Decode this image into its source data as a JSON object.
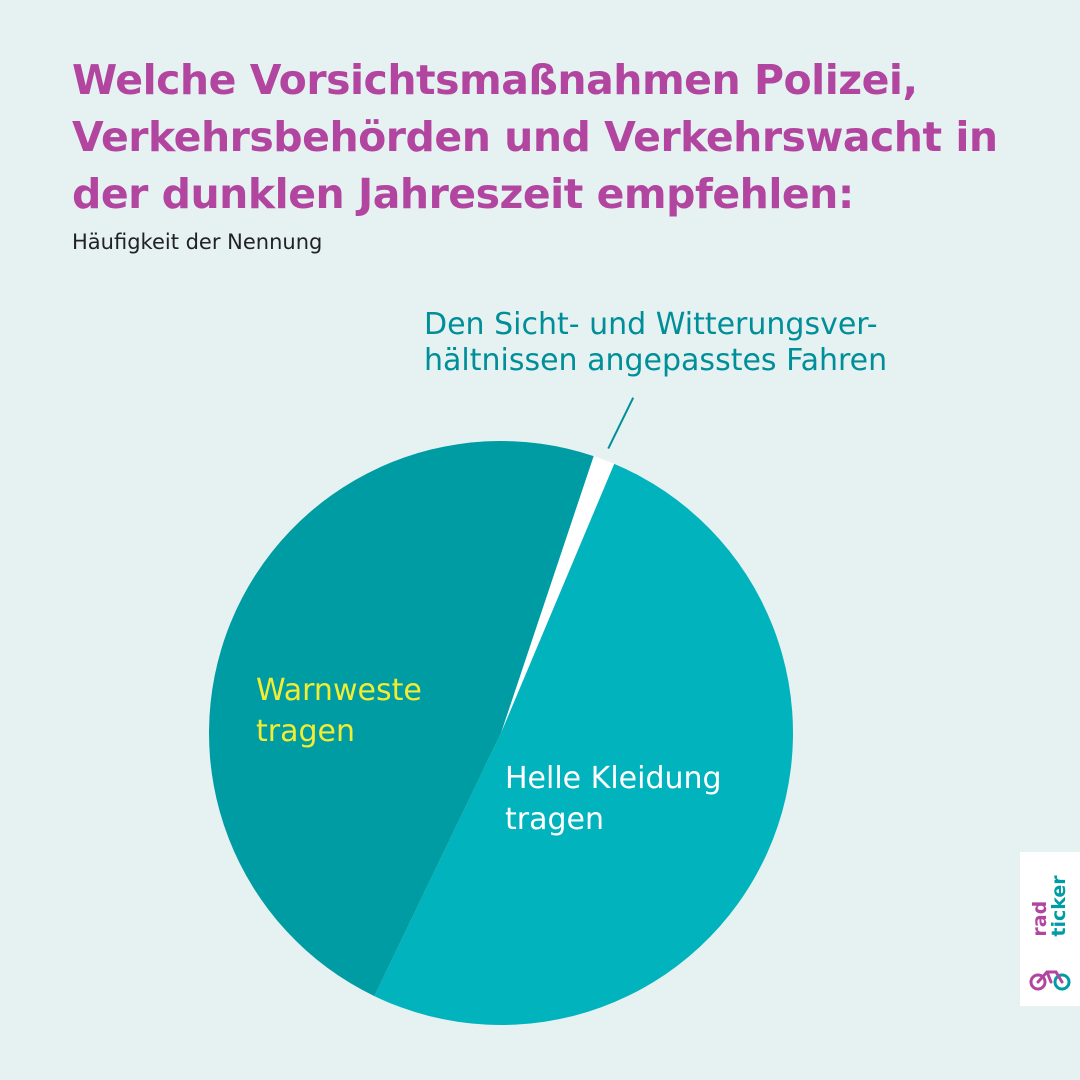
{
  "title": "Welche Vorsichtsmaßnahmen Polizei, Verkehrsbehörden und Verkehrswacht in der dunklen Jahreszeit empfehlen:",
  "subtitle": "Häufigkeit der Nennung",
  "colors": {
    "background": "#e6f1f2",
    "title": "#b2459f",
    "warnweste": "#009ca3",
    "helle_kleidung": "#00b3bd",
    "sicht": "#ffffff",
    "label_warnweste": "#f2ec32",
    "label_helle": "#ffffff",
    "label_sicht": "#008f98"
  },
  "chart_data": {
    "type": "pie",
    "title": "Welche Vorsichtsmaßnahmen Polizei, Verkehrsbehörden und Verkehrswacht in der dunklen Jahreszeit empfehlen:",
    "subtitle": "Häufigkeit der Nennung",
    "slices": [
      {
        "label": "Den Sicht- und Witterungsverhältnissen angepasstes Fahren",
        "label_lines": [
          "Den Sicht- und Witterungsver-",
          "hältnissen angepasstes Fahren"
        ],
        "value": 1.2,
        "color": "#ffffff"
      },
      {
        "label": "Helle Kleidung tragen",
        "label_lines": [
          "Helle Kleidung",
          "tragen"
        ],
        "value": 50.8,
        "color": "#00b3bd"
      },
      {
        "label": "Warnweste tragen",
        "label_lines": [
          "Warnweste",
          "tragen"
        ],
        "value": 48.0,
        "color": "#009ca3"
      }
    ]
  },
  "logo": {
    "line1": "rad",
    "line2": "ticker",
    "icon": "bicycle-icon"
  }
}
